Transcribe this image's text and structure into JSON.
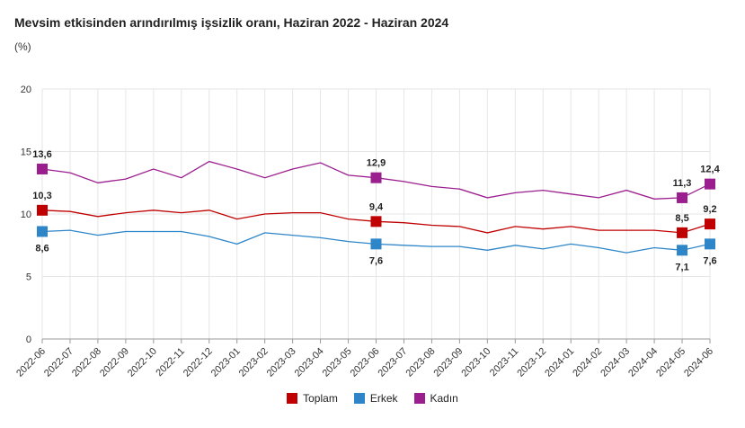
{
  "chart_data": {
    "type": "line",
    "title": "Mevsim etkisinden arındırılmış işsizlik oranı, Haziran 2022 - Haziran 2024",
    "ylabel": "(%)",
    "xlabel": "",
    "ylim": [
      0,
      20
    ],
    "yticks": [
      "0",
      "5",
      "10",
      "15",
      "20"
    ],
    "categories": [
      "2022-06",
      "2022-07",
      "2022-08",
      "2022-09",
      "2022-10",
      "2022-11",
      "2022-12",
      "2023-01",
      "2023-02",
      "2023-03",
      "2023-04",
      "2023-05",
      "2023-06",
      "2023-07",
      "2023-08",
      "2023-09",
      "2023-10",
      "2023-11",
      "2023-12",
      "2024-01",
      "2024-02",
      "2024-03",
      "2024-04",
      "2024-05",
      "2024-06"
    ],
    "series": [
      {
        "name": "Toplam",
        "color": "#c00000",
        "values": [
          10.3,
          10.2,
          9.8,
          10.1,
          10.3,
          10.1,
          10.3,
          9.6,
          10.0,
          10.1,
          10.1,
          9.6,
          9.4,
          9.3,
          9.1,
          9.0,
          8.5,
          9.0,
          8.8,
          9.0,
          8.7,
          8.7,
          8.7,
          8.5,
          9.2
        ],
        "labels": {
          "0": "10,3",
          "12": "9,4",
          "23": "8,5",
          "24": "9,2"
        }
      },
      {
        "name": "Erkek",
        "color": "#2e86c8",
        "values": [
          8.6,
          8.7,
          8.3,
          8.6,
          8.6,
          8.6,
          8.2,
          7.6,
          8.5,
          8.3,
          8.1,
          7.8,
          7.6,
          7.5,
          7.4,
          7.4,
          7.1,
          7.5,
          7.2,
          7.6,
          7.3,
          6.9,
          7.3,
          7.1,
          7.6
        ],
        "labels": {
          "0": "8,6",
          "12": "7,6",
          "23": "7,1",
          "24": "7,6"
        }
      },
      {
        "name": "Kadın",
        "color": "#9b1e8f",
        "values": [
          13.6,
          13.3,
          12.5,
          12.8,
          13.6,
          12.9,
          14.2,
          13.6,
          12.9,
          13.6,
          14.1,
          13.1,
          12.9,
          12.6,
          12.2,
          12.0,
          11.3,
          11.7,
          11.9,
          11.6,
          11.3,
          11.9,
          11.2,
          11.3,
          12.4
        ],
        "labels": {
          "0": "13,6",
          "12": "12,9",
          "23": "11,3",
          "24": "12,4"
        }
      }
    ],
    "markers_at": [
      0,
      12,
      23,
      24
    ],
    "legend": "bottom-center"
  }
}
